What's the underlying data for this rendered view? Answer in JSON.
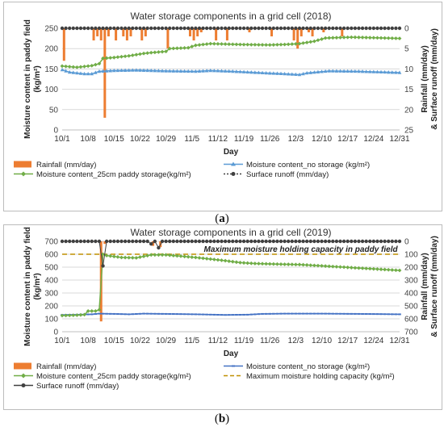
{
  "chart_data": [
    {
      "type": "combo",
      "panel_label": "a",
      "title": "Water storage components in a grid cell (2018)",
      "xlabel": "Day",
      "ylabel_left": "Moisture content in paddy field (kg/m²)",
      "ylabel_right": "Rainfall (mm/day) & Surface runoff (mm/day)",
      "x_ticks": [
        "10/1",
        "10/8",
        "10/15",
        "10/22",
        "10/29",
        "11/5",
        "11/12",
        "11/19",
        "11/26",
        "12/3",
        "12/10",
        "12/17",
        "12/24",
        "12/31"
      ],
      "ylim_left": [
        0,
        250
      ],
      "yticks_left": [
        0,
        50,
        100,
        150,
        200,
        250
      ],
      "ylim_right_reversed": [
        0,
        25
      ],
      "yticks_right": [
        0,
        5,
        10,
        15,
        20,
        25
      ],
      "grid": "horizontal",
      "legend_position": "bottom",
      "legend": [
        {
          "label": "Rainfall (mm/day)",
          "symbol": "bar",
          "color": "#ed7d31"
        },
        {
          "label": "Moisture content_no storage (kg/m²)",
          "symbol": "triangle-line",
          "color": "#5b9bd5"
        },
        {
          "label": "Moisture content_25cm paddy storage(kg/m²)",
          "symbol": "diamond-line",
          "color": "#70ad47"
        },
        {
          "label": "Surface runoff (mm/day)",
          "symbol": "dot-dotted",
          "color": "#404040"
        }
      ],
      "series": {
        "rainfall": {
          "days": [
            0,
            8,
            9,
            10,
            11,
            12,
            14,
            16,
            17,
            18,
            21,
            22,
            28,
            34,
            35,
            36,
            37,
            41,
            44,
            50,
            56,
            62,
            63,
            64,
            66,
            67,
            70,
            75
          ],
          "values": [
            8,
            3,
            2,
            3,
            22,
            2,
            3,
            2,
            3,
            2,
            3,
            2,
            5,
            2,
            3,
            2,
            1,
            3,
            3,
            1,
            2,
            3,
            5,
            2,
            1,
            2,
            1,
            2
          ]
        },
        "no_storage": {
          "knots": [
            [
              0,
              148
            ],
            [
              2,
              142
            ],
            [
              4,
              140
            ],
            [
              6,
              138
            ],
            [
              8,
              138
            ],
            [
              10,
              144
            ],
            [
              14,
              146
            ],
            [
              20,
              147
            ],
            [
              24,
              146
            ],
            [
              28,
              145
            ],
            [
              36,
              144
            ],
            [
              40,
              146
            ],
            [
              46,
              144
            ],
            [
              55,
              140
            ],
            [
              60,
              138
            ],
            [
              64,
              136
            ],
            [
              66,
              140
            ],
            [
              72,
              145
            ],
            [
              80,
              144
            ],
            [
              91,
              141
            ]
          ]
        },
        "paddy_25cm": {
          "knots": [
            [
              0,
              157
            ],
            [
              4,
              154
            ],
            [
              8,
              158
            ],
            [
              10,
              163
            ],
            [
              11,
              176
            ],
            [
              14,
              178
            ],
            [
              18,
              182
            ],
            [
              22,
              188
            ],
            [
              24,
              190
            ],
            [
              28,
              193
            ],
            [
              29,
              200
            ],
            [
              34,
              202
            ],
            [
              36,
              208
            ],
            [
              40,
              212
            ],
            [
              48,
              210
            ],
            [
              56,
              209
            ],
            [
              60,
              210
            ],
            [
              64,
              212
            ],
            [
              68,
              218
            ],
            [
              71,
              226
            ],
            [
              78,
              228
            ],
            [
              91,
              225
            ]
          ]
        },
        "runoff": {
          "days": [
            0,
            91
          ],
          "values": [
            0,
            0
          ]
        }
      }
    },
    {
      "type": "combo",
      "panel_label": "b",
      "title": "Water storage components in a grid cell (2019)",
      "xlabel": "Day",
      "ylabel_left": "Moisture content in paddy field (kg/m²)",
      "ylabel_right": "Rainfall (mm/day) & Surface runoff (mm/day)",
      "x_ticks": [
        "10/1",
        "10/8",
        "10/15",
        "10/22",
        "10/29",
        "11/5",
        "11/12",
        "11/19",
        "11/26",
        "12/3",
        "12/10",
        "12/17",
        "12/24",
        "12/31"
      ],
      "ylim_left": [
        0,
        700
      ],
      "yticks_left": [
        0,
        100,
        200,
        300,
        400,
        500,
        600,
        700
      ],
      "ylim_right_reversed": [
        0,
        700
      ],
      "yticks_right": [
        0,
        100,
        200,
        300,
        400,
        500,
        600,
        700
      ],
      "grid": "horizontal",
      "legend_position": "bottom",
      "annotation": "Maximum moisture holding capacity in paddy field",
      "max_capacity": 600,
      "legend": [
        {
          "label": "Rainfall (mm/day)",
          "symbol": "bar",
          "color": "#ed7d31"
        },
        {
          "label": "Moisture content_no storage (kg/m²)",
          "symbol": "dash-line",
          "color": "#4472c4"
        },
        {
          "label": "Moisture content_25cm paddy storage(kg/m²)",
          "symbol": "diamond-line",
          "color": "#70ad47"
        },
        {
          "label": "Maximum moisture holding capacity (kg/m²)",
          "symbol": "dashed",
          "color": "#bf8f00"
        },
        {
          "label": "Surface runoff (mm/day)",
          "symbol": "dot-line",
          "color": "#404040"
        }
      ],
      "series": {
        "rainfall": {
          "days": [
            10,
            11,
            24,
            26
          ],
          "values": [
            620,
            20,
            35,
            45
          ]
        },
        "no_storage": {
          "knots": [
            [
              0,
              130
            ],
            [
              4,
              132
            ],
            [
              8,
              135
            ],
            [
              10,
              140
            ],
            [
              14,
              138
            ],
            [
              18,
              135
            ],
            [
              22,
              140
            ],
            [
              28,
              138
            ],
            [
              36,
              135
            ],
            [
              44,
              130
            ],
            [
              50,
              132
            ],
            [
              54,
              138
            ],
            [
              60,
              140
            ],
            [
              70,
              140
            ],
            [
              80,
              138
            ],
            [
              91,
              135
            ]
          ]
        },
        "paddy_25cm": {
          "knots": [
            [
              0,
              125
            ],
            [
              4,
              128
            ],
            [
              6,
              132
            ],
            [
              7,
              160
            ],
            [
              9,
              160
            ],
            [
              10,
              170
            ],
            [
              11,
              600
            ],
            [
              12,
              590
            ],
            [
              16,
              575
            ],
            [
              20,
              572
            ],
            [
              24,
              595
            ],
            [
              28,
              595
            ],
            [
              36,
              575
            ],
            [
              44,
              550
            ],
            [
              48,
              535
            ],
            [
              52,
              528
            ],
            [
              56,
              525
            ],
            [
              60,
              522
            ],
            [
              64,
              520
            ],
            [
              70,
              510
            ],
            [
              80,
              493
            ],
            [
              91,
              475
            ]
          ]
        },
        "runoff": {
          "knots": [
            [
              0,
              0
            ],
            [
              10,
              0
            ],
            [
              11,
              190
            ],
            [
              12,
              0
            ],
            [
              23,
              0
            ],
            [
              24,
              20
            ],
            [
              25,
              0
            ],
            [
              26,
              50
            ],
            [
              27,
              0
            ],
            [
              91,
              0
            ]
          ]
        }
      }
    }
  ],
  "captions": {
    "a": "a",
    "b": "b"
  }
}
